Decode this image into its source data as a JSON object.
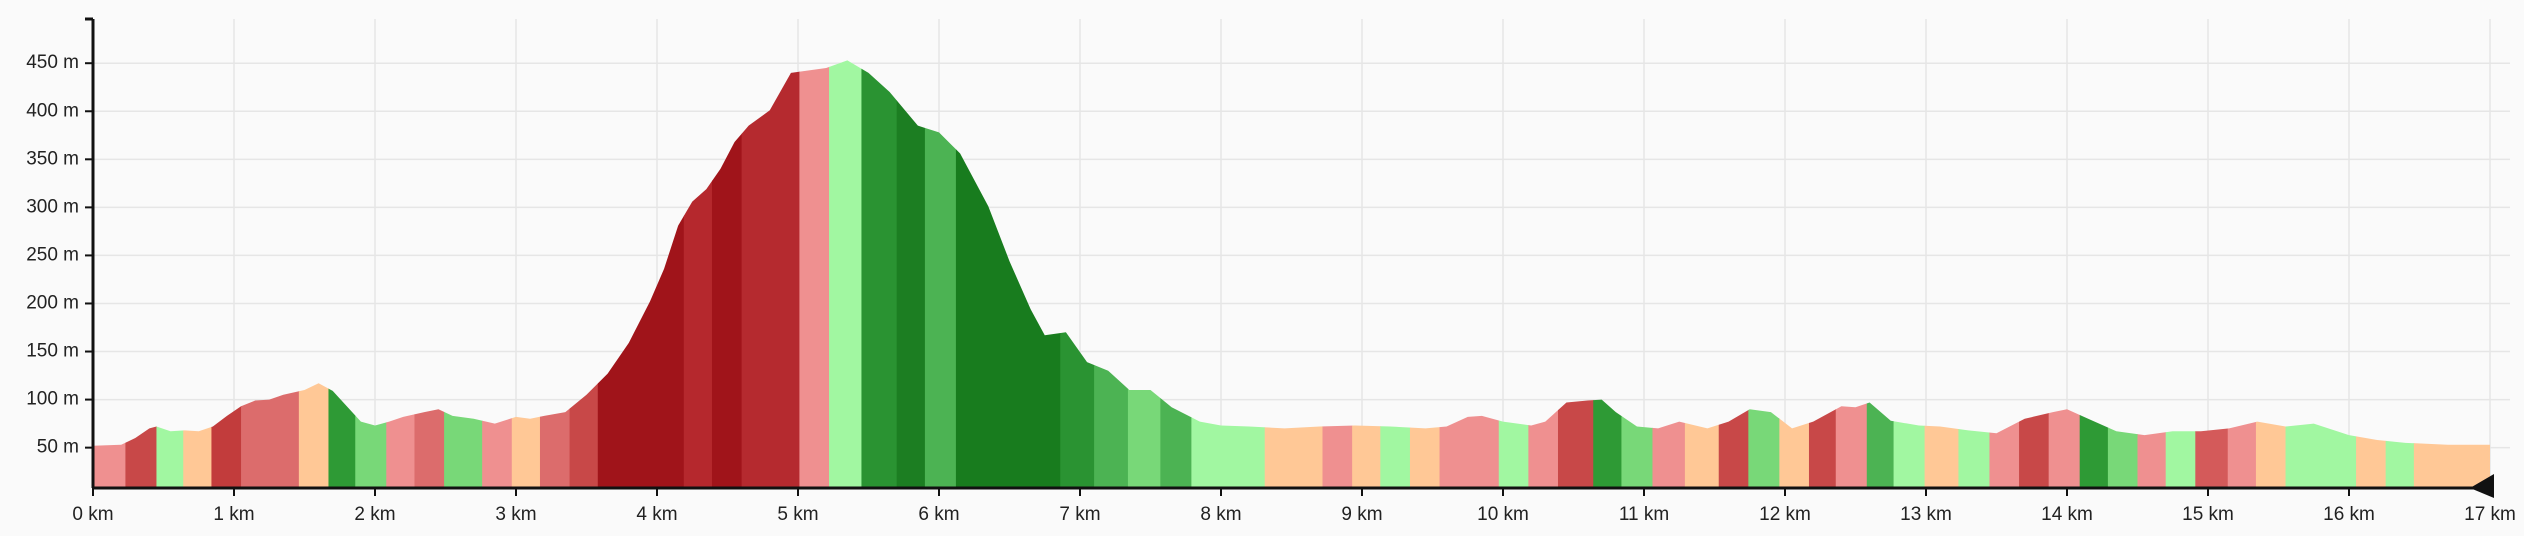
{
  "chart_data": {
    "type": "area",
    "grid": true,
    "x": [
      0,
      0.2,
      0.3,
      0.4,
      0.45,
      0.55,
      0.65,
      0.75,
      0.85,
      0.95,
      1.05,
      1.15,
      1.25,
      1.35,
      1.5,
      1.6,
      1.7,
      1.8,
      1.9,
      2.0,
      2.1,
      2.2,
      2.35,
      2.45,
      2.55,
      2.7,
      2.85,
      3.0,
      3.1,
      3.2,
      3.35,
      3.5,
      3.65,
      3.8,
      3.95,
      4.05,
      4.15,
      4.25,
      4.35,
      4.45,
      4.55,
      4.65,
      4.8,
      4.95,
      5.2,
      5.35,
      5.5,
      5.65,
      5.85,
      6.0,
      6.15,
      6.35,
      6.5,
      6.65,
      6.75,
      6.9,
      7.05,
      7.2,
      7.35,
      7.5,
      7.65,
      7.85,
      8.0,
      8.2,
      8.45,
      8.7,
      8.95,
      9.2,
      9.45,
      9.6,
      9.75,
      9.85,
      10.0,
      10.2,
      10.3,
      10.45,
      10.6,
      10.7,
      10.8,
      10.95,
      11.1,
      11.25,
      11.45,
      11.6,
      11.75,
      11.9,
      12.05,
      12.2,
      12.4,
      12.5,
      12.6,
      12.75,
      12.95,
      13.1,
      13.3,
      13.5,
      13.7,
      13.9,
      14.0,
      14.15,
      14.35,
      14.55,
      14.75,
      14.95,
      15.15,
      15.35,
      15.55,
      15.75,
      16.0,
      16.2,
      16.4,
      16.7,
      17.0
    ],
    "values": [
      52,
      53,
      60,
      70,
      72,
      67,
      68,
      67,
      72,
      83,
      93,
      99,
      100,
      105,
      110,
      117,
      109,
      93,
      77,
      73,
      77,
      82,
      87,
      90,
      83,
      80,
      75,
      82,
      80,
      83,
      87,
      105,
      127,
      159,
      202,
      236,
      281,
      306,
      319,
      340,
      368,
      385,
      401,
      440,
      445,
      453,
      440,
      420,
      385,
      378,
      356,
      301,
      244,
      194,
      167,
      170,
      139,
      130,
      110,
      110,
      92,
      77,
      73,
      72,
      70,
      72,
      73,
      72,
      70,
      72,
      82,
      83,
      77,
      73,
      77,
      97,
      99,
      100,
      87,
      72,
      70,
      77,
      70,
      77,
      90,
      87,
      70,
      77,
      93,
      92,
      97,
      78,
      73,
      72,
      68,
      65,
      80,
      87,
      90,
      80,
      67,
      63,
      67,
      67,
      70,
      77,
      72,
      75,
      63,
      58,
      55,
      53,
      53
    ],
    "segments": [
      {
        "start": 0,
        "end": 0.23,
        "color": "#ef9090"
      },
      {
        "start": 0.23,
        "end": 0.45,
        "color": "#c84848"
      },
      {
        "start": 0.45,
        "end": 0.64,
        "color": "#a1f7a1"
      },
      {
        "start": 0.64,
        "end": 0.84,
        "color": "#ffc896"
      },
      {
        "start": 0.84,
        "end": 1.05,
        "color": "#c23c3c"
      },
      {
        "start": 1.05,
        "end": 1.46,
        "color": "#dc6c6c"
      },
      {
        "start": 1.46,
        "end": 1.67,
        "color": "#ffc896"
      },
      {
        "start": 1.67,
        "end": 1.86,
        "color": "#2e9a35"
      },
      {
        "start": 1.86,
        "end": 2.08,
        "color": "#78d878"
      },
      {
        "start": 2.08,
        "end": 2.28,
        "color": "#ef9090"
      },
      {
        "start": 2.28,
        "end": 2.49,
        "color": "#dc6c6c"
      },
      {
        "start": 2.49,
        "end": 2.76,
        "color": "#78d878"
      },
      {
        "start": 2.76,
        "end": 2.97,
        "color": "#ef9090"
      },
      {
        "start": 2.97,
        "end": 3.17,
        "color": "#ffc896"
      },
      {
        "start": 3.17,
        "end": 3.38,
        "color": "#dc6c6c"
      },
      {
        "start": 3.38,
        "end": 3.58,
        "color": "#c84848"
      },
      {
        "start": 3.58,
        "end": 4.19,
        "color": "#a0141a"
      },
      {
        "start": 4.19,
        "end": 4.39,
        "color": "#b5282d"
      },
      {
        "start": 4.39,
        "end": 4.6,
        "color": "#a0141a"
      },
      {
        "start": 4.6,
        "end": 5.01,
        "color": "#b52a2f"
      },
      {
        "start": 5.01,
        "end": 5.22,
        "color": "#ef9090"
      },
      {
        "start": 5.22,
        "end": 5.45,
        "color": "#a1f7a1"
      },
      {
        "start": 5.45,
        "end": 5.7,
        "color": "#2a9332"
      },
      {
        "start": 5.7,
        "end": 5.9,
        "color": "#1c7e22"
      },
      {
        "start": 5.9,
        "end": 6.12,
        "color": "#4cb353"
      },
      {
        "start": 6.12,
        "end": 6.86,
        "color": "#187c1e"
      },
      {
        "start": 6.86,
        "end": 7.1,
        "color": "#2a9332"
      },
      {
        "start": 7.1,
        "end": 7.34,
        "color": "#4cb353"
      },
      {
        "start": 7.34,
        "end": 7.57,
        "color": "#78d878"
      },
      {
        "start": 7.57,
        "end": 7.79,
        "color": "#4cb353"
      },
      {
        "start": 7.79,
        "end": 8.31,
        "color": "#a1f7a1"
      },
      {
        "start": 8.31,
        "end": 8.72,
        "color": "#ffc896"
      },
      {
        "start": 8.72,
        "end": 8.93,
        "color": "#ef9090"
      },
      {
        "start": 8.93,
        "end": 9.13,
        "color": "#ffc896"
      },
      {
        "start": 9.13,
        "end": 9.34,
        "color": "#a1f7a1"
      },
      {
        "start": 9.34,
        "end": 9.55,
        "color": "#ffc896"
      },
      {
        "start": 9.55,
        "end": 9.97,
        "color": "#ef9090"
      },
      {
        "start": 9.97,
        "end": 10.18,
        "color": "#a1f7a1"
      },
      {
        "start": 10.18,
        "end": 10.39,
        "color": "#ef9090"
      },
      {
        "start": 10.39,
        "end": 10.64,
        "color": "#c84848"
      },
      {
        "start": 10.64,
        "end": 10.84,
        "color": "#2e9a35"
      },
      {
        "start": 10.84,
        "end": 11.06,
        "color": "#78d878"
      },
      {
        "start": 11.06,
        "end": 11.29,
        "color": "#ef9090"
      },
      {
        "start": 11.29,
        "end": 11.53,
        "color": "#ffc896"
      },
      {
        "start": 11.53,
        "end": 11.74,
        "color": "#c84848"
      },
      {
        "start": 11.74,
        "end": 11.96,
        "color": "#78d878"
      },
      {
        "start": 11.96,
        "end": 12.17,
        "color": "#ffc896"
      },
      {
        "start": 12.17,
        "end": 12.36,
        "color": "#c84848"
      },
      {
        "start": 12.36,
        "end": 12.58,
        "color": "#ef9090"
      },
      {
        "start": 12.58,
        "end": 12.77,
        "color": "#4cb353"
      },
      {
        "start": 12.77,
        "end": 12.99,
        "color": "#a1f7a1"
      },
      {
        "start": 12.99,
        "end": 13.23,
        "color": "#ffc896"
      },
      {
        "start": 13.23,
        "end": 13.45,
        "color": "#a1f7a1"
      },
      {
        "start": 13.45,
        "end": 13.66,
        "color": "#ef9090"
      },
      {
        "start": 13.66,
        "end": 13.87,
        "color": "#c84848"
      },
      {
        "start": 13.87,
        "end": 14.09,
        "color": "#ef9090"
      },
      {
        "start": 14.09,
        "end": 14.29,
        "color": "#2e9a35"
      },
      {
        "start": 14.29,
        "end": 14.5,
        "color": "#78d878"
      },
      {
        "start": 14.5,
        "end": 14.7,
        "color": "#ef9090"
      },
      {
        "start": 14.7,
        "end": 14.91,
        "color": "#a1f7a1"
      },
      {
        "start": 14.91,
        "end": 15.14,
        "color": "#d45a5a"
      },
      {
        "start": 15.14,
        "end": 15.34,
        "color": "#ef9090"
      },
      {
        "start": 15.34,
        "end": 15.55,
        "color": "#ffc896"
      },
      {
        "start": 15.55,
        "end": 16.05,
        "color": "#a1f7a1"
      },
      {
        "start": 16.05,
        "end": 16.26,
        "color": "#ffc896"
      },
      {
        "start": 16.26,
        "end": 16.46,
        "color": "#a1f7a1"
      },
      {
        "start": 16.46,
        "end": 17,
        "color": "#ffc896"
      }
    ],
    "xlim": [
      0,
      17
    ],
    "ylim": [
      8,
      496
    ],
    "xticks": [
      {
        "value": 0,
        "label": "0 km"
      },
      {
        "value": 1,
        "label": "1 km"
      },
      {
        "value": 2,
        "label": "2 km"
      },
      {
        "value": 3,
        "label": "3 km"
      },
      {
        "value": 4,
        "label": "4 km"
      },
      {
        "value": 5,
        "label": "5 km"
      },
      {
        "value": 6,
        "label": "6 km"
      },
      {
        "value": 7,
        "label": "7 km"
      },
      {
        "value": 8,
        "label": "8 km"
      },
      {
        "value": 9,
        "label": "9 km"
      },
      {
        "value": 10,
        "label": "10 km"
      },
      {
        "value": 11,
        "label": "11 km"
      },
      {
        "value": 12,
        "label": "12 km"
      },
      {
        "value": 13,
        "label": "13 km"
      },
      {
        "value": 14,
        "label": "14 km"
      },
      {
        "value": 15,
        "label": "15 km"
      },
      {
        "value": 16,
        "label": "16 km"
      },
      {
        "value": 17,
        "label": "17 km"
      }
    ],
    "yticks": [
      {
        "value": 50,
        "label": "50 m"
      },
      {
        "value": 100,
        "label": "100 m"
      },
      {
        "value": 150,
        "label": "150 m"
      },
      {
        "value": 200,
        "label": "200 m"
      },
      {
        "value": 250,
        "label": "250 m"
      },
      {
        "value": 300,
        "label": "300 m"
      },
      {
        "value": 350,
        "label": "350 m"
      },
      {
        "value": 400,
        "label": "400 m"
      },
      {
        "value": 450,
        "label": "450 m"
      }
    ]
  }
}
